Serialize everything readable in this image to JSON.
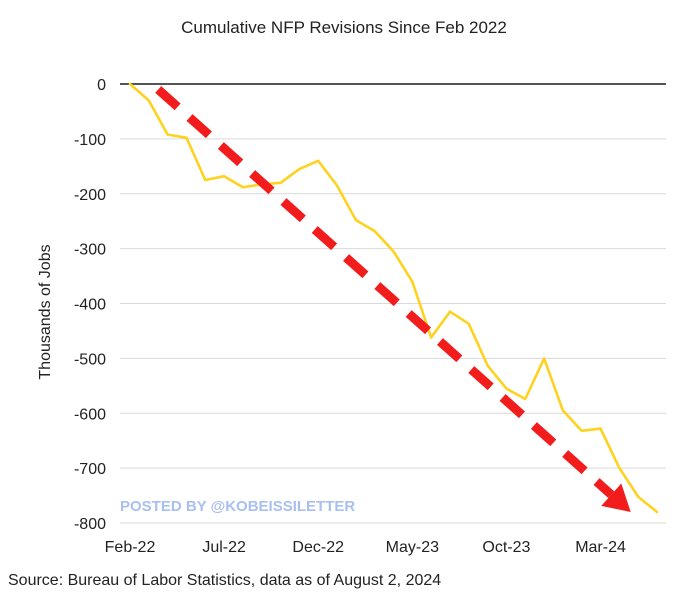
{
  "chart_data": {
    "type": "line",
    "title": "Cumulative NFP Revisions Since Feb 2022",
    "xlabel": "",
    "ylabel": "Thousands of Jobs",
    "ylim": [
      -800,
      0
    ],
    "yticks": [
      0,
      -100,
      -200,
      -300,
      -400,
      -500,
      -600,
      -700,
      -800
    ],
    "ytick_labels": [
      "0",
      "-100",
      "-200",
      "-300",
      "-400",
      "-500",
      "-600",
      "-700",
      "-800"
    ],
    "xticks": [
      {
        "label": "Feb-22",
        "index": 0
      },
      {
        "label": "Jul-22",
        "index": 5
      },
      {
        "label": "Dec-22",
        "index": 10
      },
      {
        "label": "May-23",
        "index": 15
      },
      {
        "label": "Oct-23",
        "index": 20
      },
      {
        "label": "Mar-24",
        "index": 25
      }
    ],
    "grid": true,
    "series": [
      {
        "name": "Cumulative NFP Revisions",
        "color": "#FFD21F",
        "values": [
          0,
          -30,
          -92,
          -98,
          -175,
          -168,
          -188,
          -183,
          -180,
          -155,
          -140,
          -185,
          -248,
          -268,
          -305,
          -360,
          -462,
          -415,
          -437,
          -513,
          -555,
          -574,
          -500,
          -595,
          -632,
          -628,
          -700,
          -752,
          -780
        ]
      }
    ],
    "annotations": [
      {
        "type": "trend-arrow",
        "color": "#F21C1C",
        "from": {
          "index": 1.5,
          "value": -10
        },
        "to": {
          "index": 26.6,
          "value": -780
        }
      }
    ],
    "source": "Source: Bureau of Labor Statistics, data as of August 2, 2024",
    "watermark": "POSTED BY @KOBEISSILETTER"
  },
  "colors": {
    "line": "#FFD21F",
    "arrow": "#F21C1C",
    "grid": "#D9D9D9",
    "zero_line": "#555555",
    "watermark": "#A9BFF2"
  }
}
